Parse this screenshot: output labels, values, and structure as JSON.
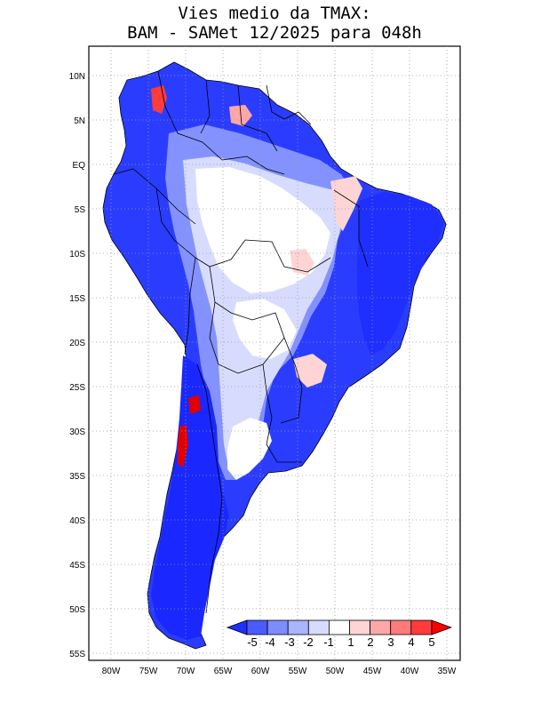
{
  "title": {
    "line1": "Vies medio da TMAX:",
    "line2": "BAM - SAMet 12/2025  para 048h"
  },
  "map": {
    "lat_labels": [
      "10N",
      "5N",
      "EQ",
      "5S",
      "10S",
      "15S",
      "20S",
      "25S",
      "30S",
      "35S",
      "40S",
      "45S",
      "50S",
      "55S"
    ],
    "lon_labels": [
      "80W",
      "75W",
      "70W",
      "65W",
      "60W",
      "55W",
      "50W",
      "45W",
      "40W",
      "35W"
    ],
    "region": "South America"
  },
  "colorbar": {
    "labels": [
      "-5",
      "-4",
      "-3",
      "-2",
      "-1",
      "1",
      "2",
      "3",
      "4",
      "5"
    ],
    "colors": [
      "#1f2fff",
      "#4a5cff",
      "#7d8cff",
      "#aab4ff",
      "#d7dcff",
      "#ffffff",
      "#ffd4d4",
      "#ffa7a7",
      "#ff7a7a",
      "#ff3b3b",
      "#ff0000"
    ]
  }
}
